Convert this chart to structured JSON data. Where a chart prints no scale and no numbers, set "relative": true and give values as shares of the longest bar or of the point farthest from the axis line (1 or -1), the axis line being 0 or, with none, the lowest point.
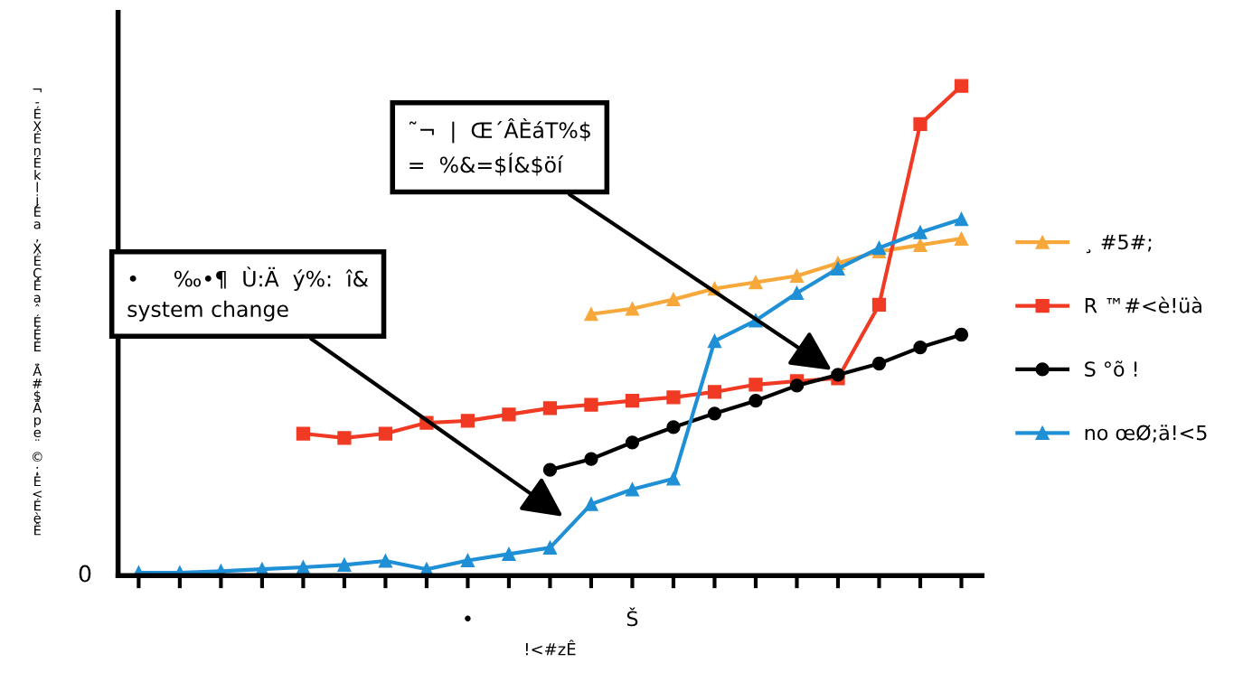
{
  "chart_data": {
    "type": "line",
    "relative": true,
    "ylabel": "¬-ÉXÉnÉklјÉa,XÉÇÉaˆÉÉÉ¸Ä#$Äpe¨©;É<ÉèÊ",
    "xlabel": "!<#zÊ",
    "categories": [
      null,
      null,
      null,
      null,
      null,
      null,
      null,
      null,
      "•",
      null,
      null,
      null,
      "Š",
      null,
      null,
      null,
      null,
      null,
      null,
      null,
      null
    ],
    "series": [
      {
        "name": "¸ #5#;",
        "color": "#f7a83a",
        "marker": "triangle",
        "values": [
          null,
          null,
          null,
          null,
          null,
          null,
          null,
          null,
          null,
          null,
          null,
          0.534,
          0.545,
          0.564,
          0.586,
          0.599,
          0.612,
          0.638,
          0.662,
          0.675,
          0.688
        ]
      },
      {
        "name": "R ™#<è!üà",
        "color": "#f03a23",
        "marker": "square",
        "values": [
          null,
          null,
          null,
          null,
          0.29,
          0.281,
          0.29,
          0.312,
          0.316,
          0.329,
          0.342,
          0.349,
          0.357,
          0.364,
          0.375,
          0.39,
          0.397,
          0.403,
          0.553,
          0.922,
          1.0
        ]
      },
      {
        "name": "S °õ !",
        "color": "#000000",
        "marker": "circle",
        "values": [
          null,
          null,
          null,
          null,
          null,
          null,
          null,
          null,
          null,
          null,
          0.216,
          0.238,
          0.272,
          0.303,
          0.331,
          0.357,
          0.388,
          0.41,
          0.433,
          0.466,
          0.492
        ]
      },
      {
        "name": "no œØ;ä!<5",
        "color": "#1f8fd6",
        "marker": "triangle",
        "values": [
          0.006,
          0.006,
          0.009,
          0.013,
          0.017,
          0.022,
          0.03,
          0.013,
          0.031,
          0.044,
          0.057,
          0.146,
          0.176,
          0.198,
          0.479,
          0.521,
          0.577,
          0.627,
          0.669,
          0.701,
          0.728
        ]
      }
    ],
    "annotations": [
      "0",
      "˜¬  |  Œ´ÂÈáT%$\n=  %&=$Í&$öí",
      "•     ‰•¶  Ù:Ä  ý%:  î&\nsystem change"
    ],
    "legend": "right",
    "grid": false,
    "line_style": "solid"
  }
}
